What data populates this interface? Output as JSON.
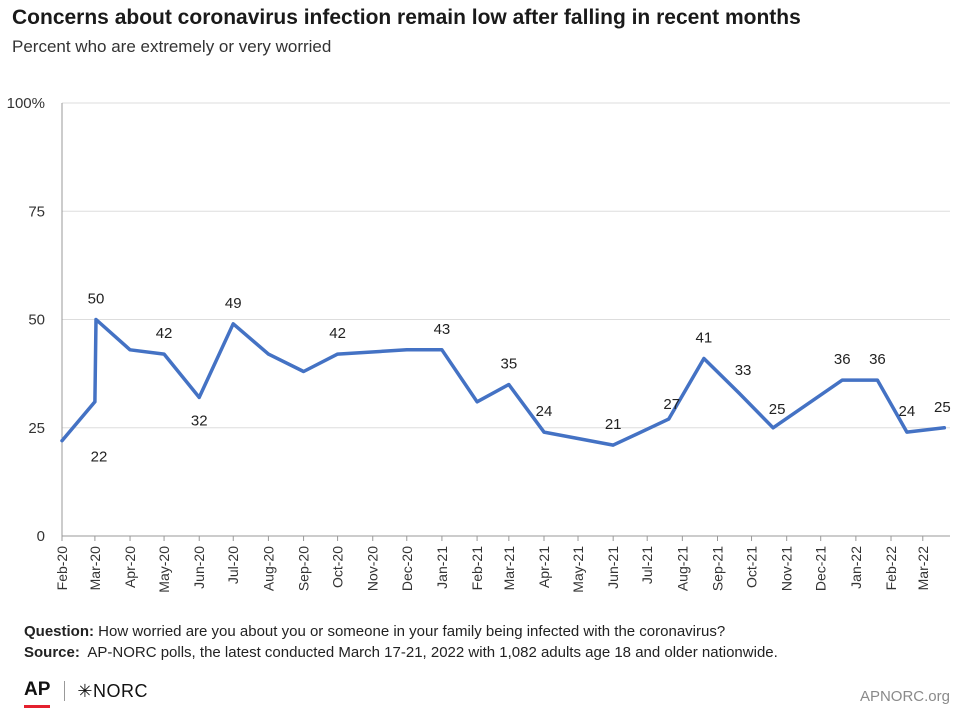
{
  "title": "Concerns about coronavirus infection remain low after falling in recent months",
  "subtitle": "Percent who are extremely or very worried",
  "question_label": "Question:",
  "question_text": "How worried are you about you or someone in your family being infected with the coronavirus?",
  "source_label": "Source:",
  "source_text": "AP-NORC polls, the latest conducted March 17-21, 2022 with 1,082 adults age 18 and older nationwide.",
  "logo_ap": "AP",
  "logo_norc": "✳NORC",
  "site": "APNORC.org",
  "colors": {
    "line": "#4472c4",
    "grid": "#dddddd",
    "axis": "#333333"
  },
  "chart_data": {
    "type": "line",
    "y_ticks": [
      "0",
      "25",
      "50",
      "75",
      "100%"
    ],
    "ylim": [
      0,
      100
    ],
    "grid": true,
    "x_ticks": [
      "Feb-20",
      "Mar-20",
      "Apr-20",
      "May-20",
      "Jun-20",
      "Jul-20",
      "Aug-20",
      "Sep-20",
      "Oct-20",
      "Nov-20",
      "Dec-20",
      "Jan-21",
      "Feb-21",
      "Mar-21",
      "Apr-21",
      "May-21",
      "Jun-21",
      "Jul-21",
      "Aug-21",
      "Sep-21",
      "Oct-21",
      "Nov-21",
      "Dec-21",
      "Jan-22",
      "Feb-22",
      "Mar-22"
    ],
    "series": [
      {
        "points": [
          {
            "x": "2020-02-01",
            "y": 22,
            "label": "22"
          },
          {
            "x": "2020-03-01",
            "y": 31
          },
          {
            "x": "2020-03-02",
            "y": 50,
            "label": "50"
          },
          {
            "x": "2020-04-01",
            "y": 43
          },
          {
            "x": "2020-05-01",
            "y": 42,
            "label": "42"
          },
          {
            "x": "2020-06-01",
            "y": 32,
            "label": "32"
          },
          {
            "x": "2020-07-01",
            "y": 49,
            "label": "49"
          },
          {
            "x": "2020-08-01",
            "y": 42
          },
          {
            "x": "2020-09-01",
            "y": 38
          },
          {
            "x": "2020-10-01",
            "y": 42,
            "label": "42"
          },
          {
            "x": "2020-12-01",
            "y": 43
          },
          {
            "x": "2021-01-01",
            "y": 43,
            "label": "43"
          },
          {
            "x": "2021-02-01",
            "y": 31
          },
          {
            "x": "2021-03-01",
            "y": 35,
            "label": "35"
          },
          {
            "x": "2021-04-01",
            "y": 24,
            "label": "24"
          },
          {
            "x": "2021-06-01",
            "y": 21,
            "label": "21"
          },
          {
            "x": "2021-07-20",
            "y": 27,
            "label": "27"
          },
          {
            "x": "2021-08-20",
            "y": 41,
            "label": "41"
          },
          {
            "x": "2021-09-20",
            "y": 33,
            "label": "33"
          },
          {
            "x": "2021-10-20",
            "y": 25,
            "label": "25"
          },
          {
            "x": "2021-12-20",
            "y": 36,
            "label": "36"
          },
          {
            "x": "2022-01-20",
            "y": 36,
            "label": "36"
          },
          {
            "x": "2022-02-15",
            "y": 24,
            "label": "24"
          },
          {
            "x": "2022-03-20",
            "y": 25,
            "label": "25"
          }
        ]
      }
    ]
  }
}
